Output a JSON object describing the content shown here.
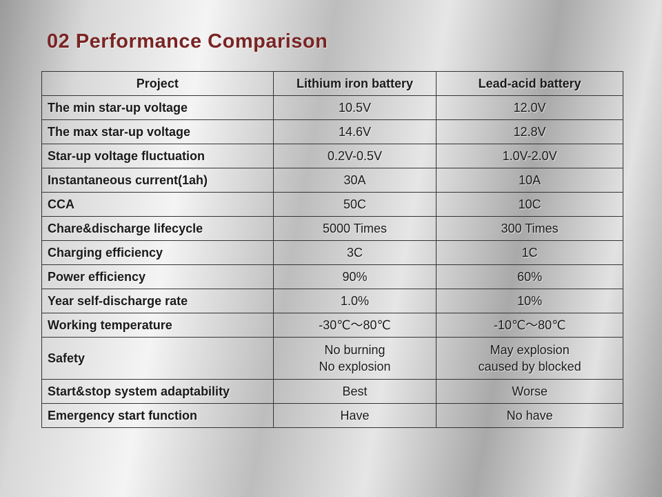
{
  "header": {
    "title": "02 Performance Comparison"
  },
  "table": {
    "columns": [
      "Project",
      "Lithium iron battery",
      "Lead-acid battery"
    ],
    "rows": [
      [
        "The min star-up voltage",
        "10.5V",
        "12.0V"
      ],
      [
        "The max star-up voltage",
        "14.6V",
        "12.8V"
      ],
      [
        "Star-up voltage fluctuation",
        "0.2V-0.5V",
        "1.0V-2.0V"
      ],
      [
        "Instantaneous current(1ah)",
        "30A",
        "10A"
      ],
      [
        "CCA",
        "50C",
        "10C"
      ],
      [
        "Chare&discharge lifecycle",
        "5000 Times",
        "300 Times"
      ],
      [
        "Charging efficiency",
        "3C",
        "1C"
      ],
      [
        "Power efficiency",
        "90%",
        "60%"
      ],
      [
        "Year self-discharge rate",
        "1.0%",
        "10%"
      ],
      [
        "Working temperature",
        "-30℃～80℃",
        "-10℃～80℃"
      ],
      [
        "Safety",
        [
          "No burning",
          "No explosion"
        ],
        [
          "May explosion",
          "caused by blocked"
        ]
      ],
      [
        "Start&stop system adaptability",
        "Best",
        "Worse"
      ],
      [
        "Emergency start function",
        "Have",
        "No have"
      ]
    ]
  }
}
